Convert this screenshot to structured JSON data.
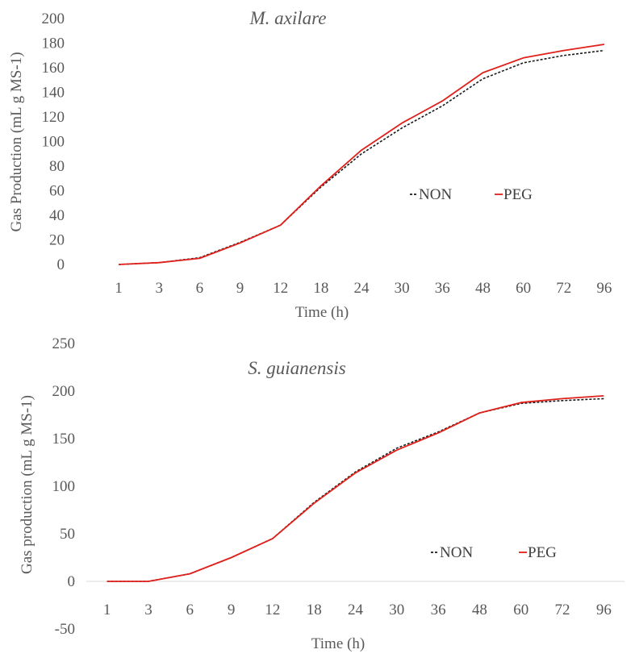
{
  "chart_data": [
    {
      "type": "line",
      "title": "M. axilare",
      "xlabel": "Time (h)",
      "ylabel": "Gas Production (mL g MS-1)",
      "categories": [
        "1",
        "3",
        "6",
        "9",
        "12",
        "18",
        "24",
        "30",
        "36",
        "48",
        "60",
        "72",
        "96"
      ],
      "ylim": [
        0,
        200
      ],
      "yticks": [
        "0",
        "20",
        "40",
        "60",
        "80",
        "100",
        "120",
        "140",
        "160",
        "180",
        "200"
      ],
      "series": [
        {
          "name": "NON",
          "color": "#1a1a1a",
          "dash": "dashed",
          "values": [
            0,
            1.5,
            5.5,
            18,
            32,
            63,
            90,
            111,
            129,
            151,
            164,
            170,
            174
          ]
        },
        {
          "name": "PEG",
          "color": "#e0201b",
          "dash": "solid",
          "values": [
            0,
            1.5,
            5,
            17.5,
            32,
            64,
            93,
            115,
            133,
            156,
            168,
            174,
            179
          ]
        }
      ],
      "legend": [
        "NON",
        "PEG"
      ],
      "legend_position": "center-right"
    },
    {
      "type": "line",
      "title": "S. guianensis",
      "xlabel": "Time (h)",
      "ylabel": "Gas production (mL g MS-1)",
      "categories": [
        "1",
        "3",
        "6",
        "9",
        "12",
        "18",
        "24",
        "30",
        "36",
        "48",
        "60",
        "72",
        "96"
      ],
      "ylim": [
        -50,
        250
      ],
      "yticks": [
        "-50",
        "0",
        "50",
        "100",
        "150",
        "200",
        "250"
      ],
      "series": [
        {
          "name": "NON",
          "color": "#1a1a1a",
          "dash": "dashed",
          "values": [
            0,
            0,
            8,
            25,
            45,
            83,
            115,
            140,
            157,
            177,
            187,
            190,
            192
          ]
        },
        {
          "name": "PEG",
          "color": "#e0201b",
          "dash": "solid",
          "values": [
            0,
            0,
            8,
            25,
            45,
            82,
            114,
            138,
            156,
            177,
            188,
            192,
            195
          ]
        }
      ],
      "legend": [
        "NON",
        "PEG"
      ],
      "legend_position": "bottom-right"
    }
  ]
}
